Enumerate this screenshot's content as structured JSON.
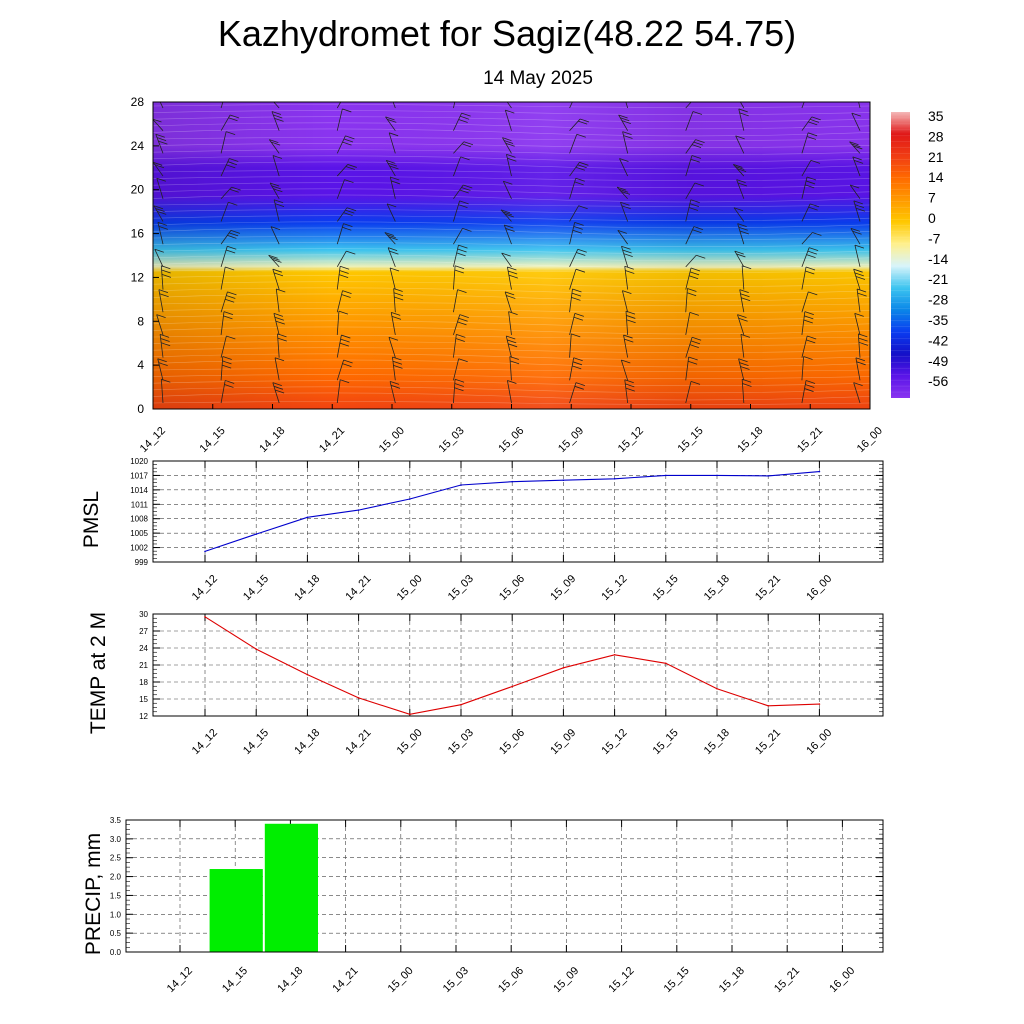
{
  "title": "Kazhydromet for Sagiz(48.22 54.75)",
  "subtitle": "14 May 2025",
  "time_labels": [
    "14_12",
    "14_15",
    "14_18",
    "14_21",
    "15_00",
    "15_03",
    "15_06",
    "15_09",
    "15_12",
    "15_15",
    "15_18",
    "15_21",
    "16_00"
  ],
  "chart_data": [
    {
      "type": "heatmap",
      "name": "temperature-wind-cross-section",
      "ylim": [
        0,
        28
      ],
      "yticks": [
        "0",
        "4",
        "8",
        "12",
        "16",
        "20",
        "24",
        "28"
      ],
      "x": [
        "14_12",
        "14_15",
        "14_18",
        "14_21",
        "15_00",
        "15_03",
        "15_06",
        "15_09",
        "15_12",
        "15_15",
        "15_18",
        "15_21",
        "16_00"
      ],
      "colorbar": {
        "labels": [
          "35",
          "28",
          "21",
          "14",
          "7",
          "0",
          "-7",
          "-14",
          "-21",
          "-28",
          "-35",
          "-42",
          "-49",
          "-56"
        ],
        "colors": [
          "#f4b8b8",
          "#e01818",
          "#f03c14",
          "#ff6a00",
          "#ff9a00",
          "#ffc800",
          "#fff08c",
          "#d8f4fa",
          "#3cc4f0",
          "#0a86e8",
          "#0a3cf0",
          "#1410c8",
          "#5a14e8",
          "#8a34f0"
        ]
      },
      "temperature_profile": [
        {
          "level": 0,
          "value": 20
        },
        {
          "level": 3,
          "value": 14
        },
        {
          "level": 8,
          "value": 7
        },
        {
          "level": 12.5,
          "value": 0
        },
        {
          "level": 13,
          "value": -10
        },
        {
          "level": 14.5,
          "value": -21
        },
        {
          "level": 17,
          "value": -35
        },
        {
          "level": 19.5,
          "value": -49
        },
        {
          "level": 22,
          "value": -49
        },
        {
          "level": 24,
          "value": -56
        },
        {
          "level": 28,
          "value": -56
        }
      ]
    },
    {
      "type": "line",
      "ylabel": "PMSL",
      "ylim": [
        999,
        1020
      ],
      "yticks": [
        "999",
        "1002",
        "1005",
        "1008",
        "1011",
        "1014",
        "1017",
        "1020"
      ],
      "x": [
        "14_12",
        "14_15",
        "14_18",
        "14_21",
        "15_00",
        "15_03",
        "15_06",
        "15_09",
        "15_12",
        "15_15",
        "15_18",
        "15_21",
        "16_00"
      ],
      "values": [
        1001.2,
        1004.8,
        1008.3,
        1009.8,
        1012.1,
        1015.0,
        1015.7,
        1016.0,
        1016.3,
        1017.0,
        1017.0,
        1016.9,
        1017.8
      ],
      "color": "#0000cc"
    },
    {
      "type": "line",
      "ylabel": "TEMP at 2 M",
      "ylim": [
        12,
        30
      ],
      "yticks": [
        "12",
        "15",
        "18",
        "21",
        "24",
        "27",
        "30"
      ],
      "x": [
        "14_12",
        "14_15",
        "14_18",
        "14_21",
        "15_00",
        "15_03",
        "15_06",
        "15_09",
        "15_12",
        "15_15",
        "15_18",
        "15_21",
        "16_00"
      ],
      "values": [
        29.5,
        23.8,
        19.3,
        15.2,
        12.3,
        14.0,
        17.2,
        20.5,
        22.8,
        21.3,
        16.8,
        13.8,
        14.1
      ],
      "color": "#dd0000"
    },
    {
      "type": "bar",
      "ylabel": "PRECIP, mm",
      "ylim": [
        0,
        3.5
      ],
      "yticks": [
        "0.0",
        "0.5",
        "1.0",
        "1.5",
        "2.0",
        "2.5",
        "3.0",
        "3.5"
      ],
      "categories": [
        "14_12",
        "14_15",
        "14_18",
        "14_21",
        "15_00",
        "15_03",
        "15_06",
        "15_09",
        "15_12",
        "15_15",
        "15_18",
        "15_21",
        "16_00"
      ],
      "values": [
        0,
        2.2,
        3.4,
        0,
        0,
        0,
        0,
        0,
        0,
        0,
        0,
        0,
        0
      ],
      "color": "#00ee00"
    }
  ]
}
